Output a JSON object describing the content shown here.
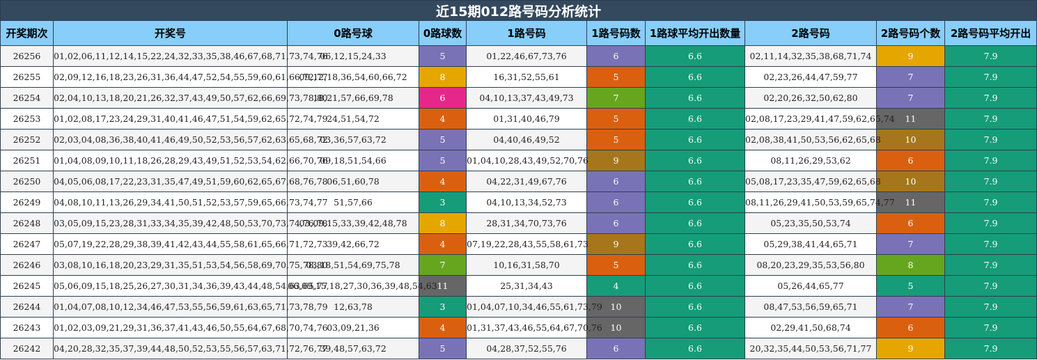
{
  "title": "近15期012路号码分析统计",
  "headers": [
    "开奖期次",
    "开奖号",
    "0路号球",
    "0路球数",
    "1路号码",
    "1路号码数",
    "1路球平均开出数量",
    "2路号码",
    "2路号码个数",
    "2路号码平均开出"
  ],
  "colors": {
    "title_bg": "#34495e",
    "header_bg": "#87cefa",
    "avg_bg": "#169c78",
    "purple": "#7a72b7",
    "orange": "#da6010",
    "yellow": "#e6a600",
    "pink": "#e6278a",
    "teal": "#169c78",
    "green": "#66a61e",
    "gray": "#666666",
    "brown": "#a6761d"
  },
  "rows": [
    {
      "period": "26256",
      "numbers": "01,02,06,11,12,14,15,22,24,32,33,35,38,46,67,68,71,73,74,76",
      "zero": "06,12,15,24,33",
      "zero_count": "5",
      "zero_color": "purple",
      "one": "01,22,46,67,73,76",
      "one_count": "6",
      "one_color": "purple",
      "one_avg": "6.6",
      "two": "02,11,14,32,35,38,68,71,74",
      "two_count": "9",
      "two_color": "yellow",
      "two_avg": "7.9"
    },
    {
      "period": "26255",
      "numbers": "02,09,12,16,18,23,26,31,36,44,47,52,54,55,59,60,61,66,72,77",
      "zero": "09,12,18,36,54,60,66,72",
      "zero_count": "8",
      "zero_color": "yellow",
      "one": "16,31,52,55,61",
      "one_count": "5",
      "one_color": "orange",
      "one_avg": "6.6",
      "two": "02,23,26,44,47,59,77",
      "two_count": "7",
      "two_color": "purple",
      "two_avg": "7.9"
    },
    {
      "period": "26254",
      "numbers": "02,04,10,13,18,20,21,26,32,37,43,49,50,57,62,66,69,73,78,80",
      "zero": "18,21,57,66,69,78",
      "zero_count": "6",
      "zero_color": "pink",
      "one": "04,10,13,37,43,49,73",
      "one_count": "7",
      "one_color": "green",
      "one_avg": "6.6",
      "two": "02,20,26,32,50,62,80",
      "two_count": "7",
      "two_color": "purple",
      "two_avg": "7.9"
    },
    {
      "period": "26253",
      "numbers": "01,02,08,17,23,24,29,31,40,41,46,47,51,54,59,62,65,72,74,79",
      "zero": "24,51,54,72",
      "zero_count": "4",
      "zero_color": "orange",
      "one": "01,31,40,46,79",
      "one_count": "5",
      "one_color": "orange",
      "one_avg": "6.6",
      "two": "02,08,17,23,29,41,47,59,62,65,74",
      "two_count": "11",
      "two_color": "gray",
      "two_avg": "7.9"
    },
    {
      "period": "26252",
      "numbers": "02,03,04,08,36,38,40,41,46,49,50,52,53,56,57,62,63,65,68,72",
      "zero": "03,36,57,63,72",
      "zero_count": "5",
      "zero_color": "purple",
      "one": "04,40,46,49,52",
      "one_count": "5",
      "one_color": "orange",
      "one_avg": "6.6",
      "two": "02,08,38,41,50,53,56,62,65,68",
      "two_count": "10",
      "two_color": "brown",
      "two_avg": "7.9"
    },
    {
      "period": "26251",
      "numbers": "01,04,08,09,10,11,18,26,28,29,43,49,51,52,53,54,62,66,70,76",
      "zero": "09,18,51,54,66",
      "zero_count": "5",
      "zero_color": "purple",
      "one": "01,04,10,28,43,49,52,70,76",
      "one_count": "9",
      "one_color": "brown",
      "one_avg": "6.6",
      "two": "08,11,26,29,53,62",
      "two_count": "6",
      "two_color": "orange",
      "two_avg": "7.9"
    },
    {
      "period": "26250",
      "numbers": "04,05,06,08,17,22,23,31,35,47,49,51,59,60,62,65,67,68,76,78",
      "zero": "06,51,60,78",
      "zero_count": "4",
      "zero_color": "orange",
      "one": "04,22,31,49,67,76",
      "one_count": "6",
      "one_color": "purple",
      "one_avg": "6.6",
      "two": "05,08,17,23,35,47,59,62,65,68",
      "two_count": "10",
      "two_color": "brown",
      "two_avg": "7.9"
    },
    {
      "period": "26249",
      "numbers": "04,08,10,11,13,26,29,34,41,50,51,52,53,57,59,65,66,73,74,77",
      "zero": "51,57,66",
      "zero_count": "3",
      "zero_color": "teal",
      "one": "04,10,13,34,52,73",
      "one_count": "6",
      "one_color": "purple",
      "one_avg": "6.6",
      "two": "08,11,26,29,41,50,53,59,65,74,77",
      "two_count": "11",
      "two_color": "gray",
      "two_avg": "7.9"
    },
    {
      "period": "26248",
      "numbers": "03,05,09,15,23,28,31,33,34,35,39,42,48,50,53,70,73,74,76,78",
      "zero": "03,09,15,33,39,42,48,78",
      "zero_count": "8",
      "zero_color": "yellow",
      "one": "28,31,34,70,73,76",
      "one_count": "6",
      "one_color": "purple",
      "one_avg": "6.6",
      "two": "05,23,35,50,53,74",
      "two_count": "6",
      "two_color": "orange",
      "two_avg": "7.9"
    },
    {
      "period": "26247",
      "numbers": "05,07,19,22,28,29,38,39,41,42,43,44,55,58,61,65,66,71,72,73",
      "zero": "39,42,66,72",
      "zero_count": "4",
      "zero_color": "orange",
      "one": "07,19,22,28,43,55,58,61,73",
      "one_count": "9",
      "one_color": "brown",
      "one_avg": "6.6",
      "two": "05,29,38,41,44,65,71",
      "two_count": "7",
      "two_color": "purple",
      "two_avg": "7.9"
    },
    {
      "period": "26246",
      "numbers": "03,08,10,16,18,20,23,29,31,35,51,53,54,56,58,69,70,75,78,80",
      "zero": "03,18,51,54,69,75,78",
      "zero_count": "7",
      "zero_color": "green",
      "one": "10,16,31,58,70",
      "one_count": "5",
      "one_color": "orange",
      "one_avg": "6.6",
      "two": "08,20,23,29,35,53,56,80",
      "two_count": "8",
      "two_color": "green",
      "two_avg": "7.9"
    },
    {
      "period": "26245",
      "numbers": "05,06,09,15,18,25,26,27,30,31,34,36,39,43,44,48,54,63,65,77",
      "zero": "06,09,15,18,27,30,36,39,48,54,63",
      "zero_count": "11",
      "zero_color": "gray",
      "one": "25,31,34,43",
      "one_count": "4",
      "one_color": "teal",
      "one_avg": "6.6",
      "two": "05,26,44,65,77",
      "two_count": "5",
      "two_color": "teal",
      "two_avg": "7.9"
    },
    {
      "period": "26244",
      "numbers": "01,04,07,08,10,12,34,46,47,53,55,56,59,61,63,65,71,73,78,79",
      "zero": "12,63,78",
      "zero_count": "3",
      "zero_color": "teal",
      "one": "01,04,07,10,34,46,55,61,73,79",
      "one_count": "10",
      "one_color": "gray",
      "one_avg": "6.6",
      "two": "08,47,53,56,59,65,71",
      "two_count": "7",
      "two_color": "purple",
      "two_avg": "7.9"
    },
    {
      "period": "26243",
      "numbers": "01,02,03,09,21,29,31,36,37,41,43,46,50,55,64,67,68,70,74,76",
      "zero": "03,09,21,36",
      "zero_count": "4",
      "zero_color": "orange",
      "one": "01,31,37,43,46,55,64,67,70,76",
      "one_count": "10",
      "one_color": "gray",
      "one_avg": "6.6",
      "two": "02,29,41,50,68,74",
      "two_count": "6",
      "two_color": "orange",
      "two_avg": "7.9"
    },
    {
      "period": "26242",
      "numbers": "04,20,28,32,35,37,39,44,48,50,52,53,55,56,57,63,71,72,76,77",
      "zero": "39,48,57,63,72",
      "zero_count": "5",
      "zero_color": "purple",
      "one": "04,28,37,52,55,76",
      "one_count": "6",
      "one_color": "purple",
      "one_avg": "6.6",
      "two": "20,32,35,44,50,53,56,71,77",
      "two_count": "9",
      "two_color": "yellow",
      "two_avg": "7.9"
    }
  ]
}
